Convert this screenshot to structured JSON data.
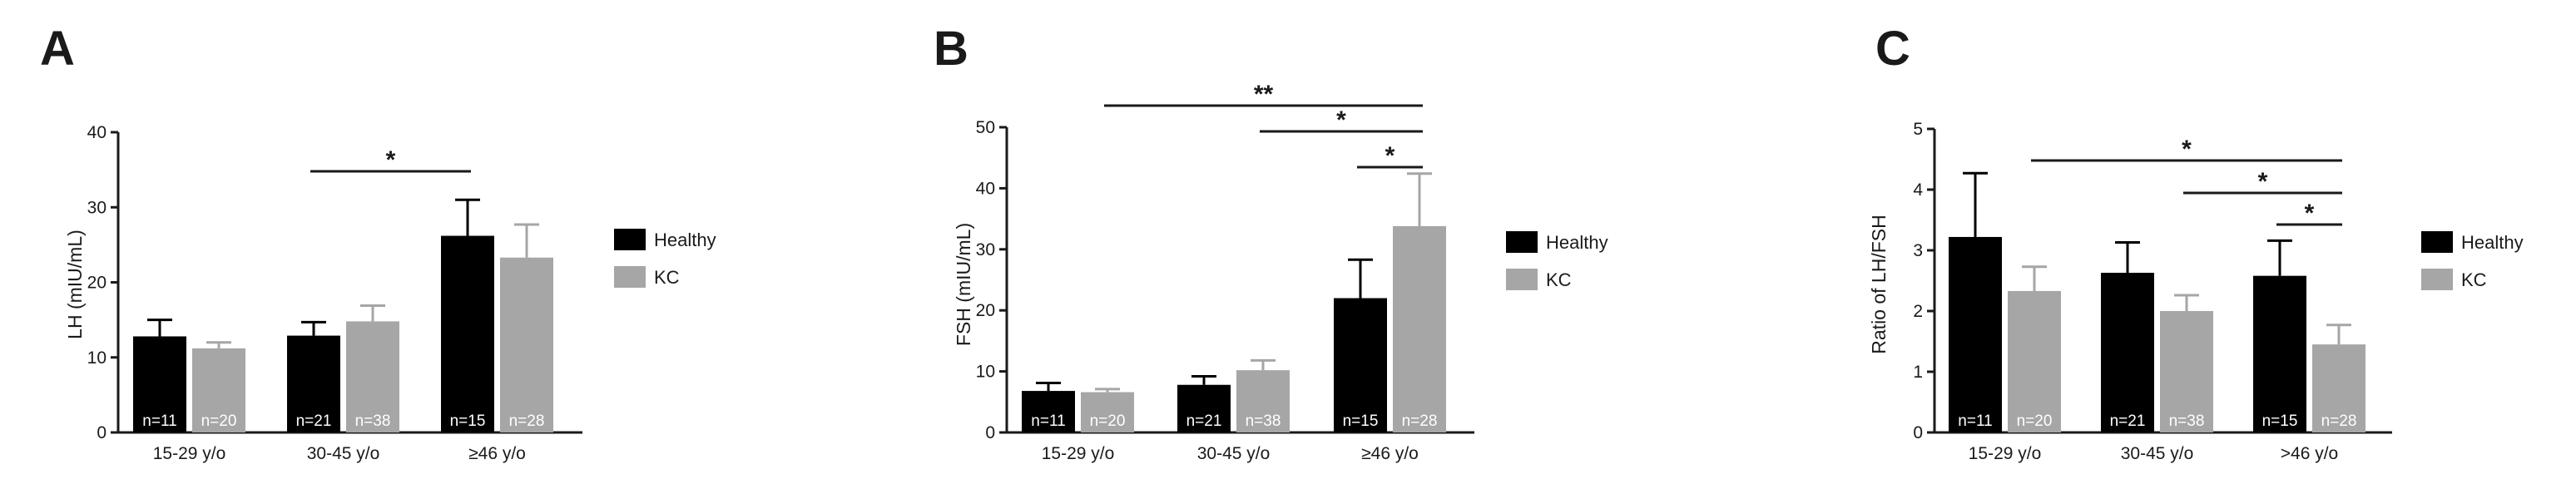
{
  "colors": {
    "healthy": "#000000",
    "kc": "#a6a6a6",
    "ink": "#1a1a1a"
  },
  "chart_data": [
    {
      "type": "bar",
      "panel": "A",
      "ylabel": "LH (mIU/mL)",
      "ylim": [
        0,
        40
      ],
      "yticks": [
        0,
        10,
        20,
        30,
        40
      ],
      "categories": [
        "15-29 y/o",
        "30-45 y/o",
        "≥46 y/o"
      ],
      "series": [
        {
          "name": "Healthy",
          "values": [
            12.8,
            12.9,
            26.2
          ],
          "errors": [
            2.2,
            1.8,
            4.8
          ],
          "n": [
            "n=11",
            "n=21",
            "n=15"
          ]
        },
        {
          "name": "KC",
          "values": [
            11.2,
            14.8,
            23.3
          ],
          "errors": [
            0.8,
            2.1,
            4.4
          ],
          "n": [
            "n=20",
            "n=38",
            "n=28"
          ]
        }
      ],
      "significance": [
        {
          "from": [
            1,
            0
          ],
          "to": [
            2,
            0
          ],
          "label": "*"
        }
      ],
      "legend": "right"
    },
    {
      "type": "bar",
      "panel": "B",
      "ylabel": "FSH (mIU/mL)",
      "ylim": [
        0,
        50
      ],
      "yticks": [
        0,
        10,
        20,
        30,
        40,
        50
      ],
      "categories": [
        "15-29 y/o",
        "30-45 y/o",
        "≥46 y/o"
      ],
      "series": [
        {
          "name": "Healthy",
          "values": [
            6.8,
            7.8,
            22.0
          ],
          "errors": [
            1.3,
            1.4,
            6.3
          ],
          "n": [
            "n=11",
            "n=21",
            "n=15"
          ]
        },
        {
          "name": "KC",
          "values": [
            6.6,
            10.2,
            33.8
          ],
          "errors": [
            0.5,
            1.6,
            8.6
          ],
          "n": [
            "n=20",
            "n=38",
            "n=28"
          ]
        }
      ],
      "significance": [
        {
          "from": [
            0,
            1
          ],
          "to": [
            2,
            1
          ],
          "label": "**"
        },
        {
          "from": [
            1,
            1
          ],
          "to": [
            2,
            1
          ],
          "label": "*"
        },
        {
          "from": [
            2,
            0
          ],
          "to": [
            2,
            1
          ],
          "label": "*"
        }
      ],
      "legend": "right"
    },
    {
      "type": "bar",
      "panel": "C",
      "ylabel": "Ratio of LH/FSH",
      "ylim": [
        0,
        5
      ],
      "yticks": [
        0,
        1,
        2,
        3,
        4,
        5
      ],
      "categories": [
        "15-29 y/o",
        "30-45 y/o",
        ">46 y/o"
      ],
      "series": [
        {
          "name": "Healthy",
          "values": [
            3.22,
            2.63,
            2.58
          ],
          "errors": [
            1.05,
            0.5,
            0.58
          ],
          "n": [
            "n=11",
            "n=21",
            "n=15"
          ]
        },
        {
          "name": "KC",
          "values": [
            2.33,
            2.0,
            1.45
          ],
          "errors": [
            0.4,
            0.26,
            0.32
          ],
          "n": [
            "n=20",
            "n=38",
            "n=28"
          ]
        }
      ],
      "significance": [
        {
          "from": [
            0,
            1
          ],
          "to": [
            2,
            1
          ],
          "label": "*"
        },
        {
          "from": [
            1,
            1
          ],
          "to": [
            2,
            1
          ],
          "label": "*"
        },
        {
          "from": [
            2,
            0
          ],
          "to": [
            2,
            1
          ],
          "label": "*"
        }
      ],
      "legend": "right"
    }
  ]
}
